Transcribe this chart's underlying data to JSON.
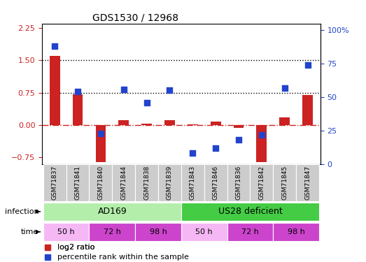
{
  "title": "GDS1530 / 12968",
  "samples": [
    "GSM71837",
    "GSM71841",
    "GSM71840",
    "GSM71844",
    "GSM71838",
    "GSM71839",
    "GSM71843",
    "GSM71846",
    "GSM71836",
    "GSM71842",
    "GSM71845",
    "GSM71847"
  ],
  "log2_ratio": [
    1.6,
    0.72,
    -0.85,
    0.12,
    0.04,
    0.12,
    0.02,
    0.08,
    -0.07,
    -0.85,
    0.18,
    0.7
  ],
  "percentile_rank": [
    88,
    54,
    23,
    56,
    46,
    55,
    8,
    12,
    18,
    22,
    57,
    74
  ],
  "red_color": "#cc2222",
  "blue_color": "#2244cc",
  "ylim_left": [
    -0.9,
    2.35
  ],
  "ylim_right": [
    0,
    105
  ],
  "yticks_left": [
    -0.75,
    0.0,
    0.75,
    1.5,
    2.25
  ],
  "yticks_right": [
    0,
    25,
    50,
    75,
    100
  ],
  "hline_15": 1.5,
  "hline_075": 0.75,
  "ad169_color": "#b3eeaa",
  "us28_color": "#44cc44",
  "time_50_color": "#f5b8f5",
  "time_72_color": "#cc44cc",
  "time_98_color": "#cc44cc",
  "sample_box_color": "#cccccc",
  "bar_width": 0.45,
  "marker_size": 40,
  "time_boxes": [
    {
      "text": "50 h",
      "start": 0,
      "end": 2,
      "color": "#f5b8f5"
    },
    {
      "text": "72 h",
      "start": 2,
      "end": 4,
      "color": "#cc44cc"
    },
    {
      "text": "98 h",
      "start": 4,
      "end": 6,
      "color": "#cc44cc"
    },
    {
      "text": "50 h",
      "start": 6,
      "end": 8,
      "color": "#f5b8f5"
    },
    {
      "text": "72 h",
      "start": 8,
      "end": 10,
      "color": "#cc44cc"
    },
    {
      "text": "98 h",
      "start": 10,
      "end": 12,
      "color": "#cc44cc"
    }
  ]
}
